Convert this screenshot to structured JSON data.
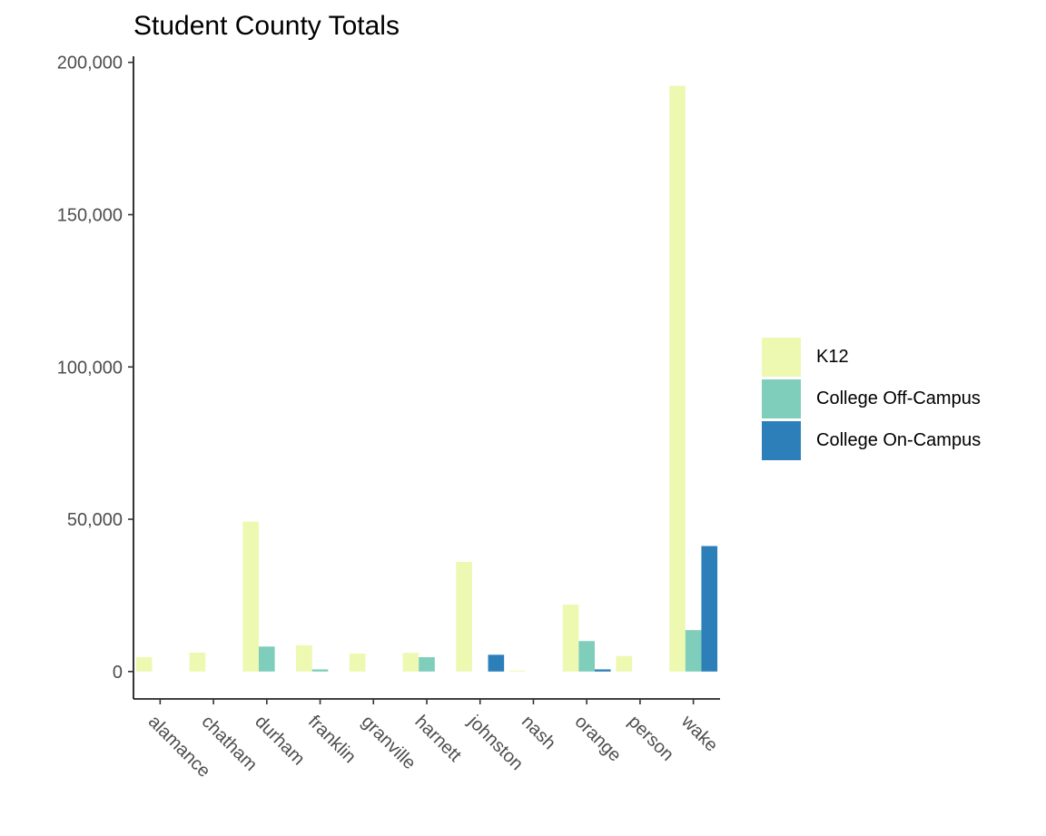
{
  "chart_data": {
    "type": "bar",
    "title": "Student County Totals",
    "xlabel": "",
    "ylabel": "",
    "categories": [
      "alamance",
      "chatham",
      "durham",
      "franklin",
      "granville",
      "harnett",
      "johnston",
      "nash",
      "orange",
      "person",
      "wake"
    ],
    "series": [
      {
        "name": "K12",
        "color": "#edf8b1",
        "values": [
          4700,
          6200,
          49200,
          8600,
          5900,
          6100,
          36000,
          300,
          22000,
          5100,
          192300
        ]
      },
      {
        "name": "College Off-Campus",
        "color": "#7fcdbb",
        "values": [
          0,
          0,
          8200,
          700,
          0,
          4700,
          0,
          0,
          10000,
          0,
          13600
        ]
      },
      {
        "name": "College On-Campus",
        "color": "#2c7fb8",
        "values": [
          0,
          0,
          0,
          0,
          0,
          0,
          5500,
          0,
          700,
          0,
          41200
        ]
      }
    ],
    "yticks": [
      0,
      50000,
      100000,
      150000,
      200000
    ],
    "ytick_labels": [
      "0",
      "50,000",
      "100,000",
      "150,000",
      "200,000"
    ],
    "ylim": [
      -9000,
      202000
    ],
    "grid": false,
    "legend_position": "right"
  }
}
